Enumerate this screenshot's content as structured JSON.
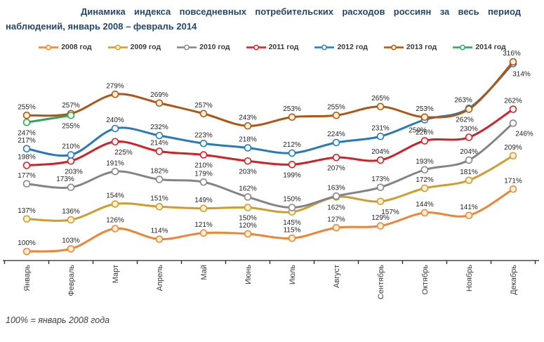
{
  "title": {
    "line1": "Динамика индекса повседневных потребительских расходов россиян за весь период",
    "line2": "наблюдений, январь 2008 – февраль 2014"
  },
  "footnote": "100% = январь 2008 года",
  "chart_data": {
    "type": "line",
    "title": "Динамика индекса повседневных потребительских расходов россиян за весь период наблюдений, январь 2008 – февраль 2014",
    "unit": "%",
    "baseline_note": "100% = январь 2008 года",
    "categories": [
      "Январь",
      "Февраль",
      "Март",
      "Апрель",
      "Май",
      "Июнь",
      "Июль",
      "Август",
      "Сентябрь",
      "Октябрь",
      "Ноябрь",
      "Декабрь"
    ],
    "ylim": [
      100,
      320
    ],
    "grid": false,
    "legend_position": "top",
    "series": [
      {
        "name": "2008 год",
        "color": "#EE8435",
        "marker_fill": "#FCEFD2",
        "values": [
          100,
          103,
          126,
          114,
          121,
          120,
          115,
          127,
          129,
          144,
          141,
          171
        ],
        "label_below": [],
        "label_dx": {}
      },
      {
        "name": "2009 год",
        "color": "#CE9C2F",
        "marker_fill": "#FCEFD2",
        "values": [
          137,
          136,
          154,
          151,
          149,
          150,
          145,
          162,
          157,
          172,
          181,
          209
        ],
        "label_below": [
          5,
          6,
          7,
          8
        ],
        "label_dx": {
          "8": 14
        }
      },
      {
        "name": "2010 год",
        "color": "#848484",
        "marker_fill": "#FFFFFF",
        "values": [
          177,
          173,
          191,
          182,
          179,
          162,
          150,
          163,
          173,
          193,
          204,
          246
        ],
        "label_below": [
          11
        ],
        "label_dx": {
          "1": -8,
          "11": 16
        }
      },
      {
        "name": "2011 год",
        "color": "#CF2128",
        "marker_fill": "#FFF6F4",
        "values": [
          198,
          203,
          225,
          214,
          210,
          203,
          199,
          207,
          204,
          226,
          230,
          262
        ],
        "label_below": [
          1,
          2,
          4,
          5,
          6,
          7
        ],
        "label_dx": {
          "1": 4,
          "2": 12
        }
      },
      {
        "name": "2012 год",
        "color": "#2A79B5",
        "marker_fill": "#F4F9FD",
        "values": [
          217,
          210,
          240,
          232,
          223,
          218,
          212,
          224,
          231,
          250,
          263,
          314
        ],
        "label_below": [
          9,
          11
        ],
        "label_dx": {
          "9": -10,
          "10": -8,
          "11": 12
        }
      },
      {
        "name": "2013 год",
        "color": "#AE5616",
        "marker_fill": "#FCEFD2",
        "values": [
          255,
          257,
          279,
          269,
          257,
          243,
          253,
          255,
          265,
          253,
          262,
          316
        ],
        "label_below": [
          10
        ],
        "label_dx": {
          "10": -6,
          "11": -2
        }
      },
      {
        "name": "2014 год",
        "color": "#35A25A",
        "marker_fill": "#F1FAF3",
        "values": [
          247,
          255
        ],
        "label_below": [
          0,
          1
        ],
        "label_dx": {}
      }
    ]
  }
}
